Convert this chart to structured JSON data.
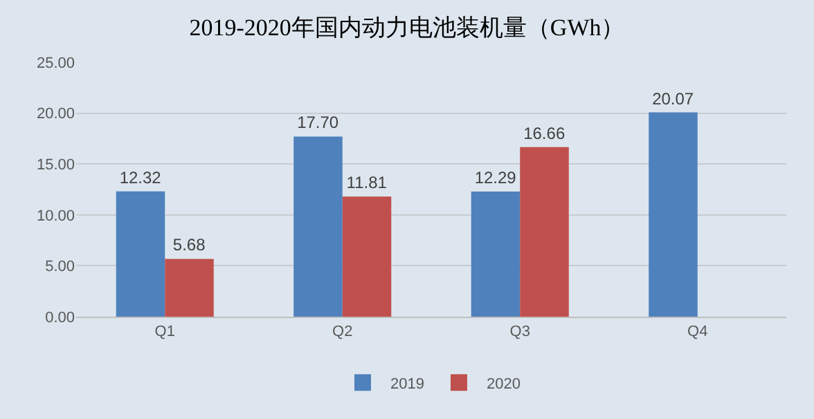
{
  "chart_data": {
    "type": "bar",
    "title": "2019-2020年国内动力电池装机量（GWh）",
    "categories": [
      "Q1",
      "Q2",
      "Q3",
      "Q4"
    ],
    "series": [
      {
        "name": "2019",
        "color": "#4f81bd",
        "values": [
          12.32,
          17.7,
          12.29,
          20.07
        ],
        "value_labels": [
          "12.32",
          "17.70",
          "12.29",
          "20.07"
        ]
      },
      {
        "name": "2020",
        "color": "#c0504d",
        "values": [
          5.68,
          11.81,
          16.66,
          null
        ],
        "value_labels": [
          "5.68",
          "11.81",
          "16.66",
          null
        ]
      }
    ],
    "ylim": [
      0,
      25
    ],
    "yticks": [
      {
        "value": 0,
        "label": "0.00"
      },
      {
        "value": 5,
        "label": "5.00"
      },
      {
        "value": 10,
        "label": "10.00"
      },
      {
        "value": 15,
        "label": "15.00"
      },
      {
        "value": 20,
        "label": "20.00"
      },
      {
        "value": 25,
        "label": "25.00"
      }
    ],
    "grid": "y",
    "legend": "bottom"
  }
}
